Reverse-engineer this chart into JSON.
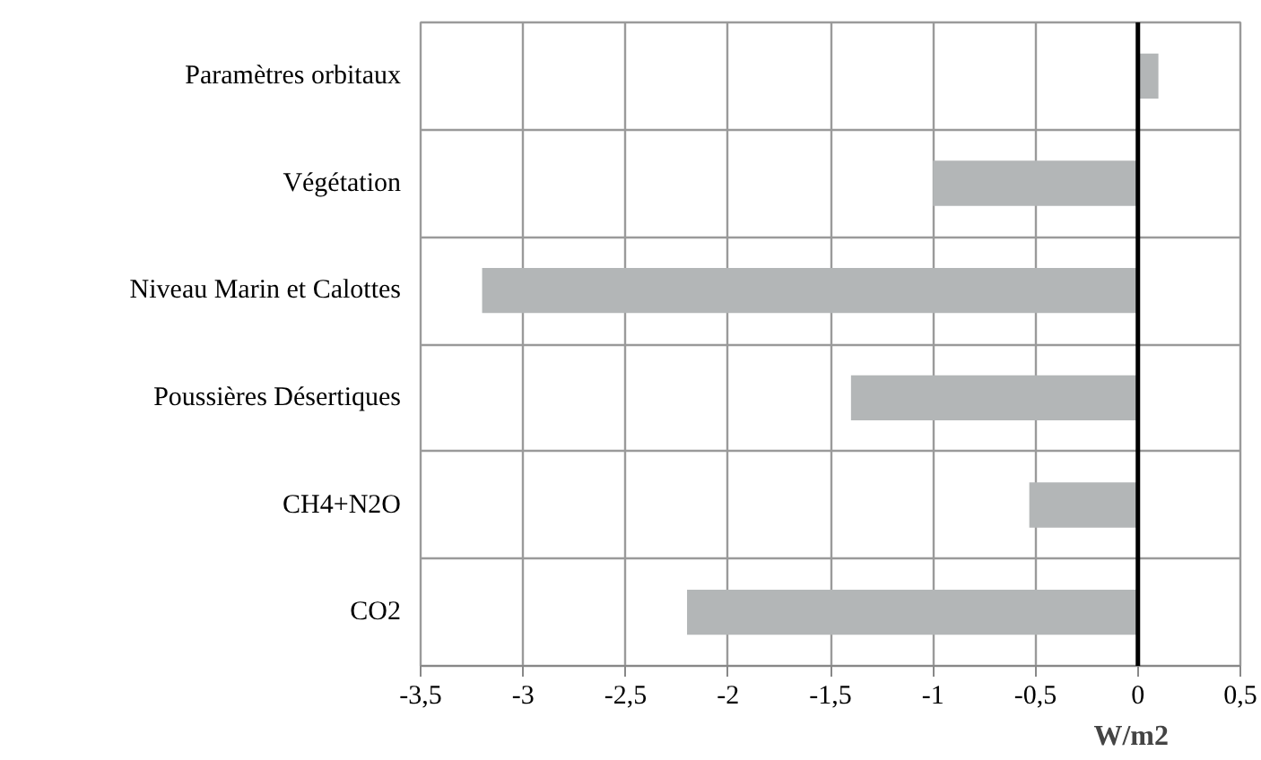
{
  "chart_data": {
    "type": "bar",
    "orientation": "horizontal",
    "xlabel": "W/m2",
    "categories": [
      "Paramètres orbitaux",
      "Végétation",
      "Niveau Marin et Calottes",
      "Poussières Désertiques",
      "CH4+N2O",
      "CO2"
    ],
    "values": [
      0.1,
      -1.0,
      -3.2,
      -1.4,
      -0.53,
      -2.2
    ],
    "color": "#b3b6b7",
    "xlim": [
      -3.5,
      0.5
    ],
    "xticks": [
      {
        "value": -3.5,
        "label": "-3,5"
      },
      -3,
      {
        "value": -2.5,
        "label": "-2,5"
      },
      -2,
      {
        "value": -1.5,
        "label": "-1,5"
      },
      -1,
      {
        "value": -0.5,
        "label": "-0,5"
      },
      0,
      {
        "value": 0.5,
        "label": "0,5"
      }
    ],
    "ref_lines": [
      {
        "axis": "x",
        "value": 0,
        "color": "#000000"
      }
    ],
    "grid": true
  }
}
